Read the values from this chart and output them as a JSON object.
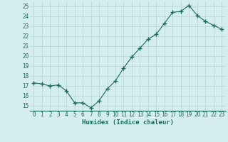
{
  "x": [
    0,
    1,
    2,
    3,
    4,
    5,
    6,
    7,
    8,
    9,
    10,
    11,
    12,
    13,
    14,
    15,
    16,
    17,
    18,
    19,
    20,
    21,
    22,
    23
  ],
  "y": [
    17.3,
    17.2,
    17.0,
    17.1,
    16.5,
    15.3,
    15.3,
    14.8,
    15.5,
    16.7,
    17.5,
    18.8,
    19.9,
    20.8,
    21.7,
    22.2,
    23.3,
    24.4,
    24.5,
    25.1,
    24.1,
    23.5,
    23.1,
    22.7
  ],
  "line_color": "#1a6b5a",
  "marker": "+",
  "marker_size": 4,
  "bg_color": "#d4eeee",
  "grid_color": "#b8d8d8",
  "xlabel": "Humidex (Indice chaleur)",
  "xlim": [
    -0.5,
    23.5
  ],
  "ylim": [
    14.5,
    25.5
  ],
  "yticks": [
    15,
    16,
    17,
    18,
    19,
    20,
    21,
    22,
    23,
    24,
    25
  ],
  "xticks": [
    0,
    1,
    2,
    3,
    4,
    5,
    6,
    7,
    8,
    9,
    10,
    11,
    12,
    13,
    14,
    15,
    16,
    17,
    18,
    19,
    20,
    21,
    22,
    23
  ],
  "tick_label_color": "#1a6b5a",
  "xlabel_color": "#1a6b5a",
  "tick_fontsize": 5.5,
  "xlabel_fontsize": 6.5
}
